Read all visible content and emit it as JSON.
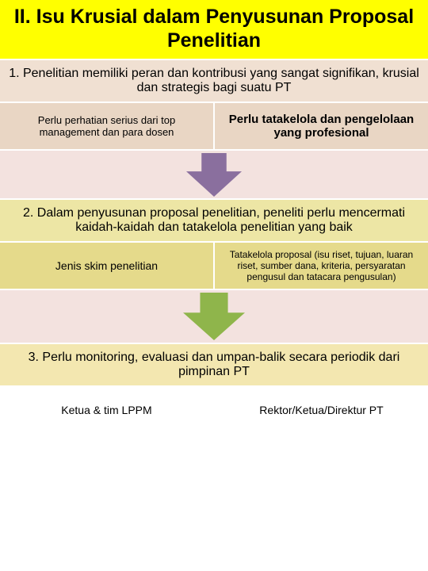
{
  "title": "II. Isu Krusial dalam Penyusunan Proposal Penelitian",
  "title_bg": "#ffff00",
  "title_color": "#000000",
  "title_fontsize": 25,
  "sections": [
    {
      "header": {
        "text": "1. Penelitian memiliki peran dan kontribusi yang sangat signifikan, krusial dan strategis bagi suatu PT",
        "bg": "#f0e0d2",
        "fontsize": 16
      },
      "cols": [
        {
          "text": "Perlu perhatian serius dari top management dan para dosen",
          "bg": "#e9d6c4",
          "fontsize": 13
        },
        {
          "text": "Perlu tatakelola dan pengelolaan yang profesional",
          "bg": "#e9d6c4",
          "fontsize": 15,
          "bold": true
        }
      ],
      "arrow": {
        "bg": "#f3e2df",
        "fill": "#8a6f9e",
        "height": 60,
        "arrow_w": 70,
        "arrow_h": 55
      }
    },
    {
      "header": {
        "text": "2. Dalam penyusunan  proposal penelitian, peneliti perlu mencermati  kaidah-kaidah dan tatakelola penelitian yang baik",
        "bg": "#ede6a5",
        "fontsize": 16
      },
      "cols": [
        {
          "text": "Jenis skim penelitian",
          "bg": "#e5da8b",
          "fontsize": 14
        },
        {
          "text": "Tatakelola proposal (isu riset, tujuan, luaran riset, sumber dana, kriteria, persyaratan pengusul dan tatacara pengusulan)",
          "bg": "#e5da8b",
          "fontsize": 12
        }
      ],
      "arrow": {
        "bg": "#f3e2df",
        "fill": "#8fb54b",
        "height": 66,
        "arrow_w": 78,
        "arrow_h": 60
      }
    },
    {
      "header": {
        "text": "3. Perlu monitoring, evaluasi dan umpan-balik secara periodik dari pimpinan PT",
        "bg": "#f3e7b0",
        "fontsize": 16
      },
      "cols": [
        {
          "text": "Ketua  & tim LPPM",
          "bg": "#ffffff",
          "fontsize": 14
        },
        {
          "text": "Rektor/Ketua/Direktur PT",
          "bg": "#ffffff",
          "fontsize": 14
        }
      ]
    }
  ],
  "cols_height": 58,
  "divider_color": "#ffffff"
}
